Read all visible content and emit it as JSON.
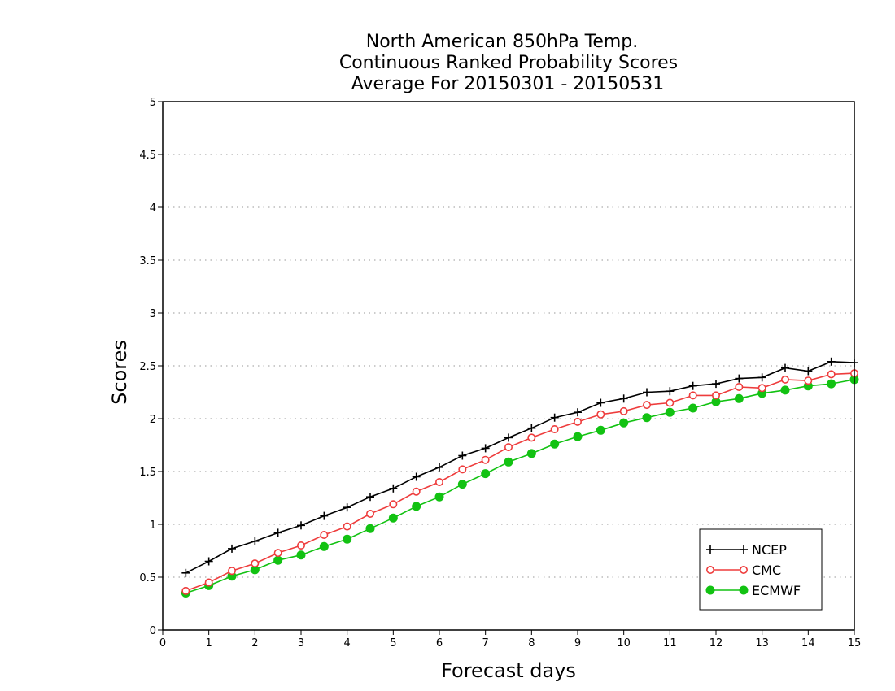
{
  "chart_data": {
    "type": "line",
    "title": [
      "North American 850hPa Temp.",
      "Continuous Ranked Probability Scores",
      "Average For 20150301 - 20150531"
    ],
    "xlabel": "Forecast days",
    "ylabel": "Scores",
    "xlim": [
      0,
      15
    ],
    "ylim": [
      0,
      5
    ],
    "x_ticks": [
      0,
      1,
      2,
      3,
      4,
      5,
      6,
      7,
      8,
      9,
      10,
      11,
      12,
      13,
      14,
      15
    ],
    "x_tick_labels": [
      "0",
      "1",
      "2",
      "3",
      "4",
      "5",
      "6",
      "7",
      "8",
      "9",
      "10",
      "11",
      "12",
      "13",
      "14",
      "15"
    ],
    "y_ticks": [
      0,
      0.5,
      1,
      1.5,
      2,
      2.5,
      3,
      3.5,
      4,
      4.5,
      5
    ],
    "y_tick_labels": [
      "0",
      "0.5",
      "1",
      "1.5",
      "2",
      "2.5",
      "3",
      "3.5",
      "4",
      "4.5",
      "5"
    ],
    "grid": "horizontal dotted",
    "legend_position": "bottom-right",
    "x": [
      0.5,
      1,
      1.5,
      2,
      2.5,
      3,
      3.5,
      4,
      4.5,
      5,
      5.5,
      6,
      6.5,
      7,
      7.5,
      8,
      8.5,
      9,
      9.5,
      10,
      10.5,
      11,
      11.5,
      12,
      12.5,
      13,
      13.5,
      14,
      14.5,
      15
    ],
    "series": [
      {
        "name": "NCEP",
        "color": "#000000",
        "marker": "plus",
        "values": [
          0.54,
          0.65,
          0.77,
          0.84,
          0.92,
          0.99,
          1.08,
          1.16,
          1.26,
          1.34,
          1.45,
          1.54,
          1.65,
          1.72,
          1.82,
          1.91,
          2.01,
          2.06,
          2.15,
          2.19,
          2.25,
          2.26,
          2.31,
          2.33,
          2.38,
          2.39,
          2.48,
          2.45,
          2.54,
          2.53
        ]
      },
      {
        "name": "CMC",
        "color": "#ee3c3c",
        "marker": "open-circle",
        "values": [
          0.37,
          0.45,
          0.56,
          0.63,
          0.73,
          0.8,
          0.9,
          0.98,
          1.1,
          1.19,
          1.31,
          1.4,
          1.52,
          1.61,
          1.73,
          1.82,
          1.9,
          1.97,
          2.04,
          2.07,
          2.13,
          2.15,
          2.22,
          2.22,
          2.3,
          2.29,
          2.37,
          2.36,
          2.42,
          2.43
        ]
      },
      {
        "name": "ECMWF",
        "color": "#12c212",
        "marker": "filled-circle",
        "values": [
          0.35,
          0.42,
          0.51,
          0.57,
          0.66,
          0.71,
          0.79,
          0.86,
          0.96,
          1.06,
          1.17,
          1.26,
          1.38,
          1.48,
          1.59,
          1.67,
          1.76,
          1.83,
          1.89,
          1.96,
          2.01,
          2.06,
          2.1,
          2.16,
          2.19,
          2.24,
          2.27,
          2.31,
          2.33,
          2.37
        ]
      }
    ]
  }
}
